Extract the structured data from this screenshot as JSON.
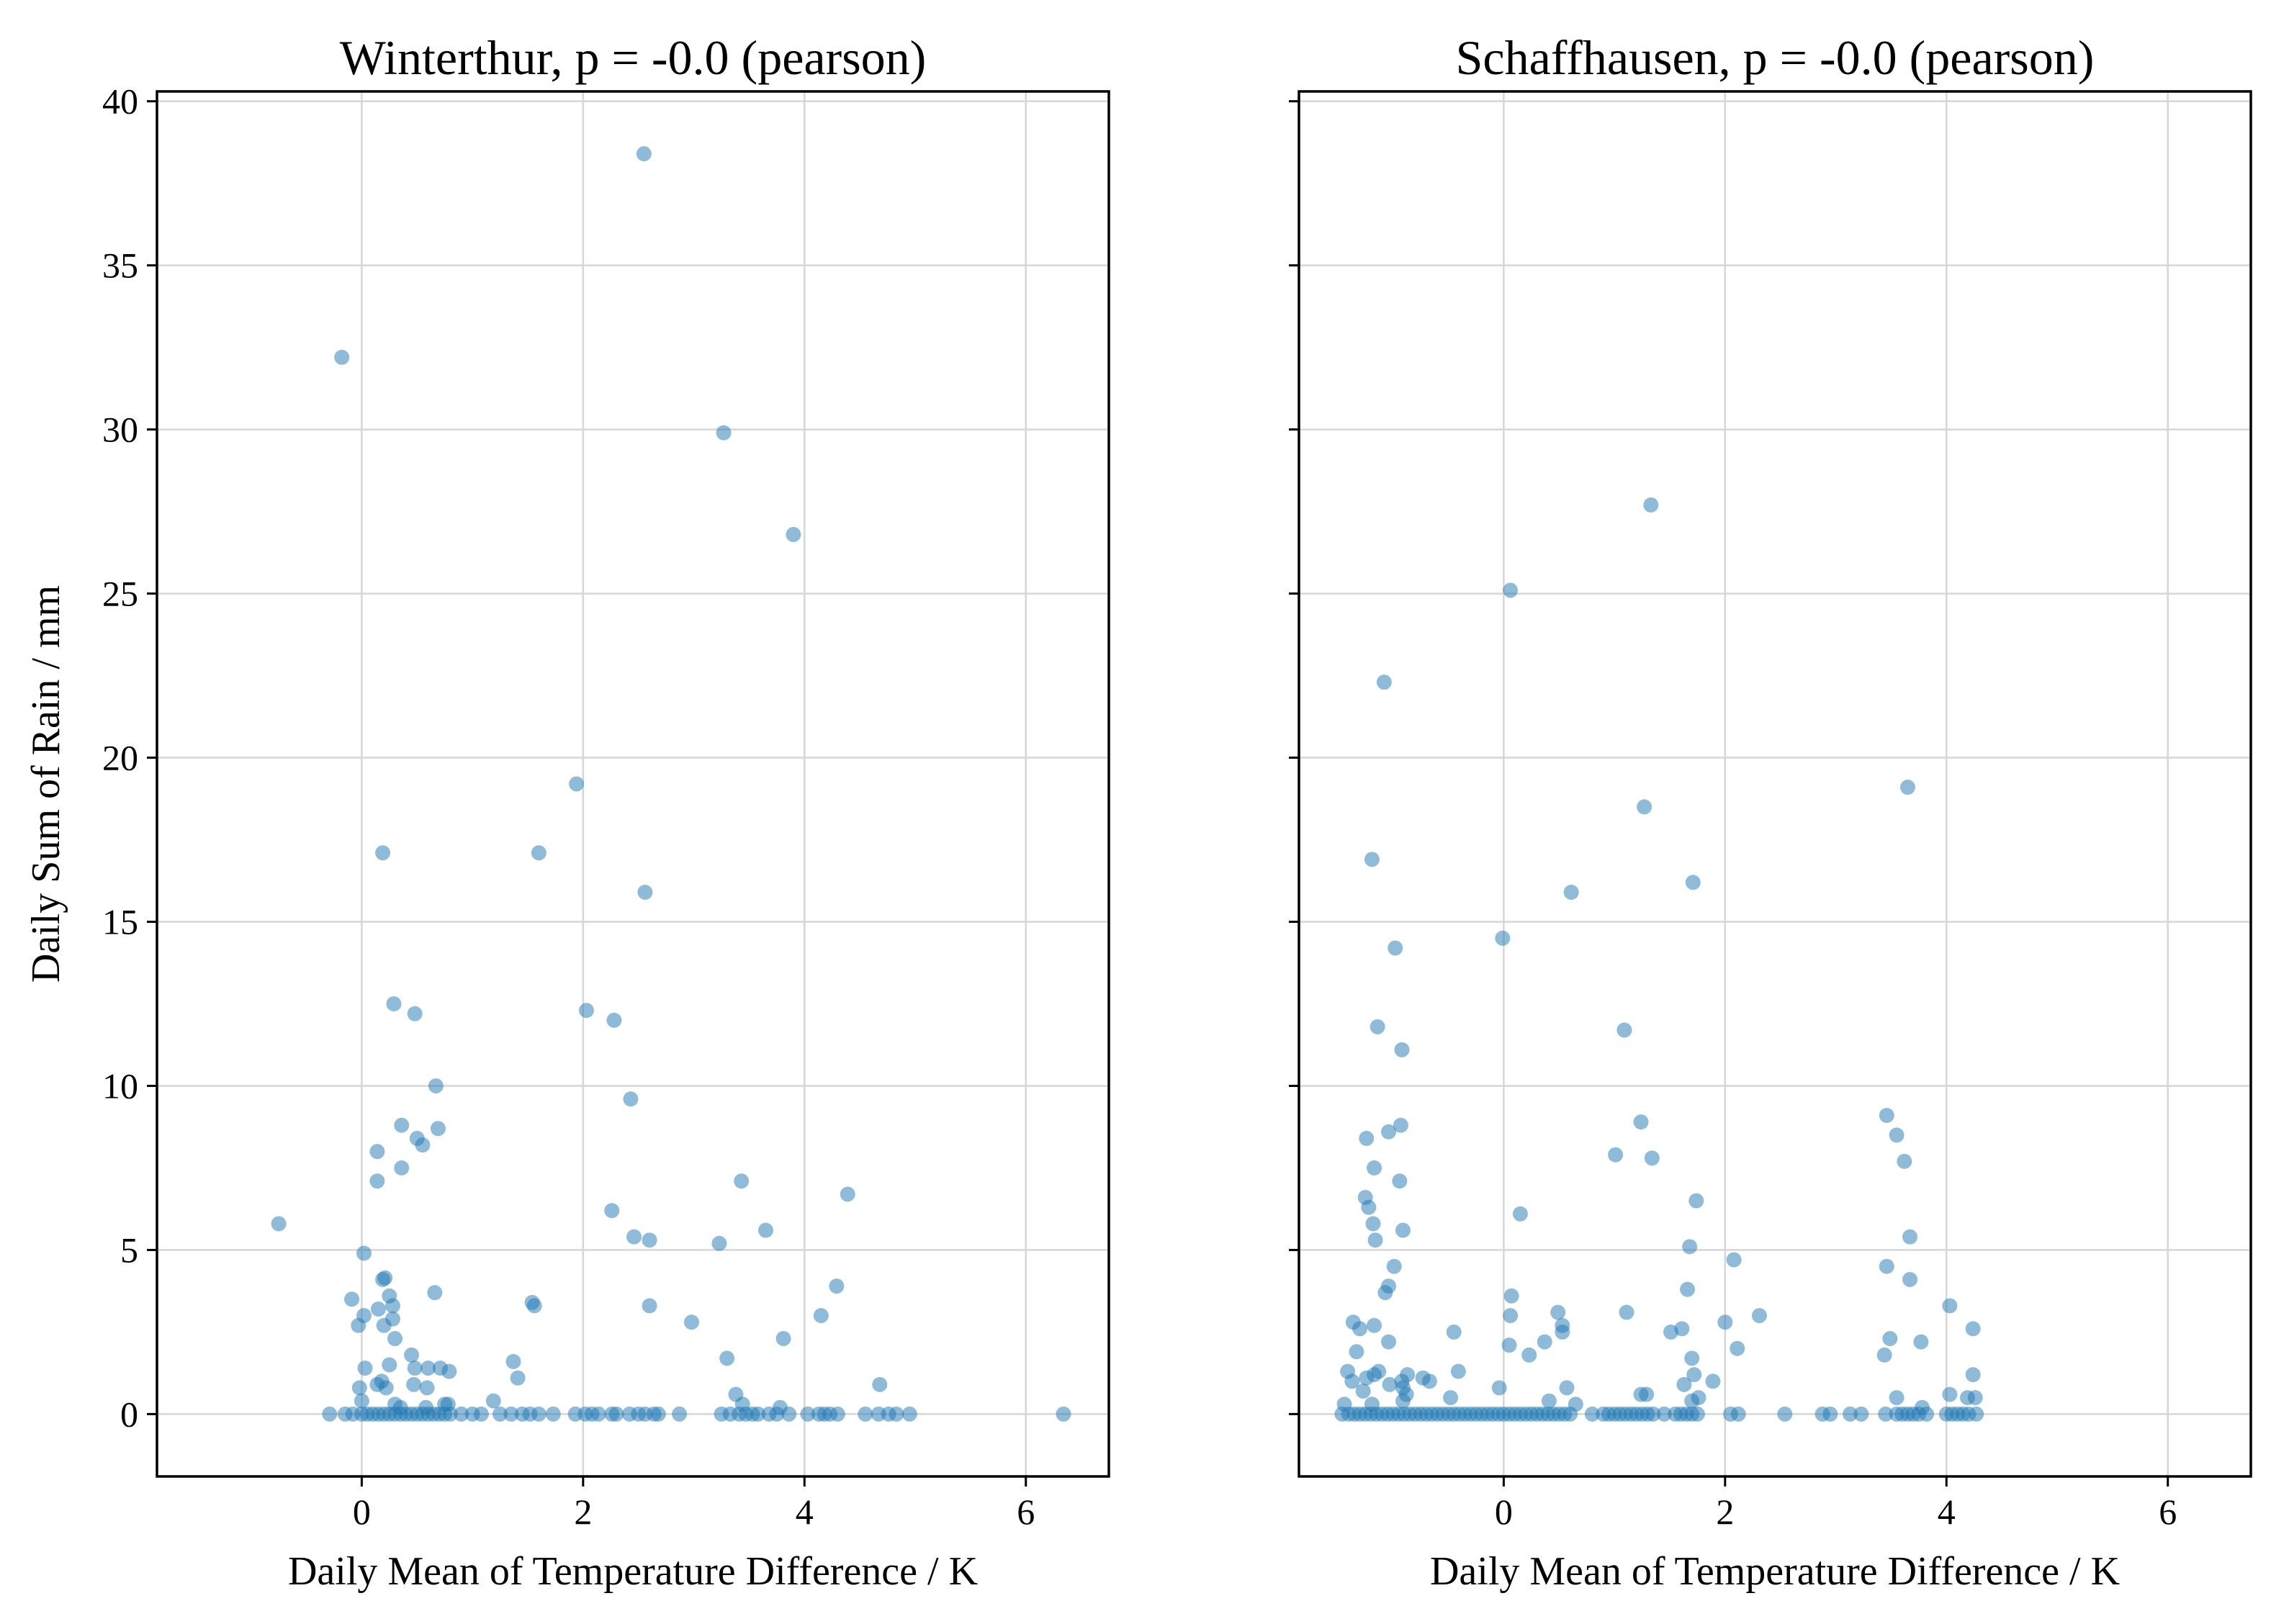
{
  "chart_data": [
    {
      "type": "scatter",
      "title": "Winterthur, p = -0.0 (pearson)",
      "xlabel": "Daily Mean of Temperature Difference / K",
      "ylabel": "Daily Sum of Rain / mm",
      "xlim": [
        -1.85,
        6.75
      ],
      "ylim": [
        -1.9,
        40.3
      ],
      "xticks": [
        0,
        2,
        4,
        6
      ],
      "yticks": [
        0,
        5,
        10,
        15,
        20,
        25,
        30,
        35,
        40
      ],
      "grid": true,
      "color": "#1f77b4",
      "points": [
        [
          -0.75,
          5.8
        ],
        [
          -0.18,
          32.2
        ],
        [
          2.55,
          38.4
        ],
        [
          3.27,
          29.9
        ],
        [
          3.9,
          26.8
        ],
        [
          1.94,
          19.2
        ],
        [
          0.19,
          17.1
        ],
        [
          1.6,
          17.1
        ],
        [
          2.56,
          15.9
        ],
        [
          0.29,
          12.5
        ],
        [
          0.48,
          12.2
        ],
        [
          2.03,
          12.3
        ],
        [
          2.28,
          12.0
        ],
        [
          0.67,
          10.0
        ],
        [
          2.43,
          9.6
        ],
        [
          0.36,
          8.8
        ],
        [
          0.69,
          8.7
        ],
        [
          0.5,
          8.4
        ],
        [
          0.55,
          8.2
        ],
        [
          0.14,
          8.0
        ],
        [
          0.36,
          7.5
        ],
        [
          0.14,
          7.1
        ],
        [
          3.43,
          7.1
        ],
        [
          4.39,
          6.7
        ],
        [
          2.26,
          6.2
        ],
        [
          3.65,
          5.6
        ],
        [
          2.46,
          5.4
        ],
        [
          2.6,
          5.3
        ],
        [
          3.23,
          5.2
        ],
        [
          0.02,
          4.9
        ],
        [
          0.19,
          4.1
        ],
        [
          0.21,
          4.15
        ],
        [
          4.29,
          3.9
        ],
        [
          0.66,
          3.7
        ],
        [
          0.25,
          3.6
        ],
        [
          -0.09,
          3.5
        ],
        [
          1.54,
          3.4
        ],
        [
          1.56,
          3.3
        ],
        [
          2.6,
          3.3
        ],
        [
          0.28,
          3.3
        ],
        [
          0.15,
          3.2
        ],
        [
          4.15,
          3.0
        ],
        [
          0.02,
          3.0
        ],
        [
          0.28,
          2.9
        ],
        [
          2.98,
          2.8
        ],
        [
          -0.03,
          2.7
        ],
        [
          0.2,
          2.7
        ],
        [
          0.3,
          2.3
        ],
        [
          3.81,
          2.3
        ],
        [
          0.45,
          1.8
        ],
        [
          3.3,
          1.7
        ],
        [
          1.37,
          1.6
        ],
        [
          0.25,
          1.5
        ],
        [
          0.03,
          1.4
        ],
        [
          0.48,
          1.4
        ],
        [
          0.6,
          1.4
        ],
        [
          0.71,
          1.4
        ],
        [
          0.79,
          1.3
        ],
        [
          1.41,
          1.1
        ],
        [
          0.18,
          1.0
        ],
        [
          0.14,
          0.9
        ],
        [
          0.47,
          0.9
        ],
        [
          4.68,
          0.9
        ],
        [
          -0.02,
          0.8
        ],
        [
          0.22,
          0.8
        ],
        [
          0.59,
          0.8
        ],
        [
          3.38,
          0.6
        ],
        [
          1.19,
          0.4
        ],
        [
          0.0,
          0.4
        ],
        [
          0.3,
          0.3
        ],
        [
          0.75,
          0.3
        ],
        [
          0.78,
          0.3
        ],
        [
          3.44,
          0.3
        ],
        [
          3.78,
          0.2
        ],
        [
          0.58,
          0.2
        ],
        [
          0.35,
          0.2
        ],
        [
          -0.29,
          0.0
        ],
        [
          -0.15,
          0.0
        ],
        [
          -0.08,
          0.0
        ],
        [
          0.0,
          0.0
        ],
        [
          0.05,
          0.0
        ],
        [
          0.1,
          0.0
        ],
        [
          0.15,
          0.0
        ],
        [
          0.2,
          0.0
        ],
        [
          0.25,
          0.0
        ],
        [
          0.3,
          0.0
        ],
        [
          0.35,
          0.0
        ],
        [
          0.4,
          0.0
        ],
        [
          0.45,
          0.0
        ],
        [
          0.5,
          0.0
        ],
        [
          0.55,
          0.0
        ],
        [
          0.6,
          0.0
        ],
        [
          0.65,
          0.0
        ],
        [
          0.7,
          0.0
        ],
        [
          0.75,
          0.0
        ],
        [
          0.8,
          0.0
        ],
        [
          0.9,
          0.0
        ],
        [
          1.0,
          0.0
        ],
        [
          1.08,
          0.0
        ],
        [
          1.25,
          0.0
        ],
        [
          1.35,
          0.0
        ],
        [
          1.45,
          0.0
        ],
        [
          1.52,
          0.0
        ],
        [
          1.6,
          0.0
        ],
        [
          1.73,
          0.0
        ],
        [
          1.93,
          0.0
        ],
        [
          2.02,
          0.0
        ],
        [
          2.08,
          0.0
        ],
        [
          2.14,
          0.0
        ],
        [
          2.26,
          0.0
        ],
        [
          2.3,
          0.0
        ],
        [
          2.42,
          0.0
        ],
        [
          2.5,
          0.0
        ],
        [
          2.56,
          0.0
        ],
        [
          2.64,
          0.0
        ],
        [
          2.68,
          0.0
        ],
        [
          2.87,
          0.0
        ],
        [
          3.25,
          0.0
        ],
        [
          3.33,
          0.0
        ],
        [
          3.41,
          0.0
        ],
        [
          3.47,
          0.0
        ],
        [
          3.53,
          0.0
        ],
        [
          3.58,
          0.0
        ],
        [
          3.68,
          0.0
        ],
        [
          3.75,
          0.0
        ],
        [
          3.86,
          0.0
        ],
        [
          4.03,
          0.0
        ],
        [
          4.13,
          0.0
        ],
        [
          4.18,
          0.0
        ],
        [
          4.23,
          0.0
        ],
        [
          4.3,
          0.0
        ],
        [
          4.55,
          0.0
        ],
        [
          4.67,
          0.0
        ],
        [
          4.76,
          0.0
        ],
        [
          4.83,
          0.0
        ],
        [
          4.95,
          0.0
        ],
        [
          6.34,
          0.0
        ]
      ]
    },
    {
      "type": "scatter",
      "title": "Schaffhausen, p = -0.0 (pearson)",
      "xlabel": "Daily Mean of Temperature Difference / K",
      "ylabel": "",
      "xlim": [
        -1.85,
        6.75
      ],
      "ylim": [
        -1.9,
        40.3
      ],
      "xticks": [
        0,
        2,
        4,
        6
      ],
      "yticks": [
        0,
        5,
        10,
        15,
        20,
        25,
        30,
        35,
        40
      ],
      "grid": true,
      "color": "#1f77b4",
      "points": [
        [
          1.33,
          27.7
        ],
        [
          0.06,
          25.1
        ],
        [
          -1.08,
          22.3
        ],
        [
          3.65,
          19.1
        ],
        [
          1.27,
          18.5
        ],
        [
          -1.19,
          16.9
        ],
        [
          1.71,
          16.2
        ],
        [
          0.61,
          15.9
        ],
        [
          -0.01,
          14.5
        ],
        [
          -0.98,
          14.2
        ],
        [
          -1.14,
          11.8
        ],
        [
          1.09,
          11.7
        ],
        [
          -0.92,
          11.1
        ],
        [
          3.46,
          9.1
        ],
        [
          1.24,
          8.9
        ],
        [
          -0.93,
          8.8
        ],
        [
          -1.04,
          8.6
        ],
        [
          3.55,
          8.5
        ],
        [
          -1.24,
          8.4
        ],
        [
          1.01,
          7.9
        ],
        [
          1.34,
          7.8
        ],
        [
          3.62,
          7.7
        ],
        [
          -1.17,
          7.5
        ],
        [
          -0.94,
          7.1
        ],
        [
          -1.25,
          6.6
        ],
        [
          1.74,
          6.5
        ],
        [
          -1.22,
          6.3
        ],
        [
          0.15,
          6.1
        ],
        [
          -1.18,
          5.8
        ],
        [
          -0.91,
          5.6
        ],
        [
          3.67,
          5.4
        ],
        [
          -1.16,
          5.3
        ],
        [
          1.68,
          5.1
        ],
        [
          2.08,
          4.7
        ],
        [
          3.46,
          4.5
        ],
        [
          -0.99,
          4.5
        ],
        [
          3.67,
          4.1
        ],
        [
          -1.04,
          3.9
        ],
        [
          1.66,
          3.8
        ],
        [
          -1.07,
          3.7
        ],
        [
          0.07,
          3.6
        ],
        [
          4.03,
          3.3
        ],
        [
          0.49,
          3.1
        ],
        [
          1.11,
          3.1
        ],
        [
          0.06,
          3.0
        ],
        [
          2.31,
          3.0
        ],
        [
          -1.36,
          2.8
        ],
        [
          0.53,
          2.7
        ],
        [
          2.0,
          2.8
        ],
        [
          -1.3,
          2.6
        ],
        [
          -1.17,
          2.7
        ],
        [
          4.24,
          2.6
        ],
        [
          1.61,
          2.6
        ],
        [
          0.53,
          2.5
        ],
        [
          1.51,
          2.5
        ],
        [
          -0.45,
          2.5
        ],
        [
          3.49,
          2.3
        ],
        [
          0.37,
          2.2
        ],
        [
          3.77,
          2.2
        ],
        [
          -1.04,
          2.2
        ],
        [
          0.05,
          2.1
        ],
        [
          2.11,
          2.0
        ],
        [
          -1.33,
          1.9
        ],
        [
          0.23,
          1.8
        ],
        [
          3.44,
          1.8
        ],
        [
          1.7,
          1.7
        ],
        [
          -0.41,
          1.3
        ],
        [
          -1.41,
          1.3
        ],
        [
          -1.13,
          1.3
        ],
        [
          -1.17,
          1.2
        ],
        [
          -0.87,
          1.2
        ],
        [
          1.72,
          1.2
        ],
        [
          4.24,
          1.2
        ],
        [
          -0.73,
          1.1
        ],
        [
          -1.24,
          1.1
        ],
        [
          -0.67,
          1.0
        ],
        [
          -1.37,
          1.0
        ],
        [
          -0.92,
          1.0
        ],
        [
          1.89,
          1.0
        ],
        [
          0.57,
          0.8
        ],
        [
          -0.04,
          0.8
        ],
        [
          -0.91,
          0.8
        ],
        [
          1.63,
          0.9
        ],
        [
          -1.03,
          0.9
        ],
        [
          -1.27,
          0.7
        ],
        [
          -0.88,
          0.6
        ],
        [
          1.24,
          0.6
        ],
        [
          1.29,
          0.6
        ],
        [
          4.03,
          0.6
        ],
        [
          4.19,
          0.5
        ],
        [
          3.55,
          0.5
        ],
        [
          -0.48,
          0.5
        ],
        [
          1.76,
          0.5
        ],
        [
          -0.91,
          0.4
        ],
        [
          0.41,
          0.4
        ],
        [
          1.7,
          0.4
        ],
        [
          4.26,
          0.5
        ],
        [
          -1.19,
          0.3
        ],
        [
          3.78,
          0.2
        ],
        [
          0.65,
          0.3
        ],
        [
          -1.44,
          0.3
        ],
        [
          -1.46,
          0.0
        ],
        [
          -1.4,
          0.0
        ],
        [
          -1.35,
          0.0
        ],
        [
          -1.3,
          0.0
        ],
        [
          -1.25,
          0.0
        ],
        [
          -1.2,
          0.0
        ],
        [
          -1.15,
          0.0
        ],
        [
          -1.1,
          0.0
        ],
        [
          -1.05,
          0.0
        ],
        [
          -1.0,
          0.0
        ],
        [
          -0.95,
          0.0
        ],
        [
          -0.9,
          0.0
        ],
        [
          -0.85,
          0.0
        ],
        [
          -0.8,
          0.0
        ],
        [
          -0.75,
          0.0
        ],
        [
          -0.7,
          0.0
        ],
        [
          -0.65,
          0.0
        ],
        [
          -0.6,
          0.0
        ],
        [
          -0.55,
          0.0
        ],
        [
          -0.5,
          0.0
        ],
        [
          -0.45,
          0.0
        ],
        [
          -0.4,
          0.0
        ],
        [
          -0.35,
          0.0
        ],
        [
          -0.3,
          0.0
        ],
        [
          -0.25,
          0.0
        ],
        [
          -0.2,
          0.0
        ],
        [
          -0.15,
          0.0
        ],
        [
          -0.1,
          0.0
        ],
        [
          -0.05,
          0.0
        ],
        [
          0.0,
          0.0
        ],
        [
          0.05,
          0.0
        ],
        [
          0.1,
          0.0
        ],
        [
          0.15,
          0.0
        ],
        [
          0.2,
          0.0
        ],
        [
          0.25,
          0.0
        ],
        [
          0.3,
          0.0
        ],
        [
          0.35,
          0.0
        ],
        [
          0.4,
          0.0
        ],
        [
          0.45,
          0.0
        ],
        [
          0.5,
          0.0
        ],
        [
          0.55,
          0.0
        ],
        [
          0.6,
          0.0
        ],
        [
          0.8,
          0.0
        ],
        [
          0.9,
          0.0
        ],
        [
          0.95,
          0.0
        ],
        [
          1.0,
          0.0
        ],
        [
          1.05,
          0.0
        ],
        [
          1.1,
          0.0
        ],
        [
          1.15,
          0.0
        ],
        [
          1.2,
          0.0
        ],
        [
          1.25,
          0.0
        ],
        [
          1.3,
          0.0
        ],
        [
          1.35,
          0.0
        ],
        [
          1.45,
          0.0
        ],
        [
          1.55,
          0.0
        ],
        [
          1.6,
          0.0
        ],
        [
          1.65,
          0.0
        ],
        [
          1.7,
          0.0
        ],
        [
          1.75,
          0.0
        ],
        [
          2.05,
          0.0
        ],
        [
          2.12,
          0.0
        ],
        [
          2.54,
          0.0
        ],
        [
          2.88,
          0.0
        ],
        [
          2.95,
          0.0
        ],
        [
          3.13,
          0.0
        ],
        [
          3.23,
          0.0
        ],
        [
          3.45,
          0.0
        ],
        [
          3.55,
          0.0
        ],
        [
          3.6,
          0.0
        ],
        [
          3.65,
          0.0
        ],
        [
          3.7,
          0.0
        ],
        [
          3.75,
          0.0
        ],
        [
          3.82,
          0.0
        ],
        [
          4.0,
          0.0
        ],
        [
          4.05,
          0.0
        ],
        [
          4.1,
          0.0
        ],
        [
          4.15,
          0.0
        ],
        [
          4.2,
          0.0
        ],
        [
          4.27,
          0.0
        ]
      ]
    }
  ]
}
